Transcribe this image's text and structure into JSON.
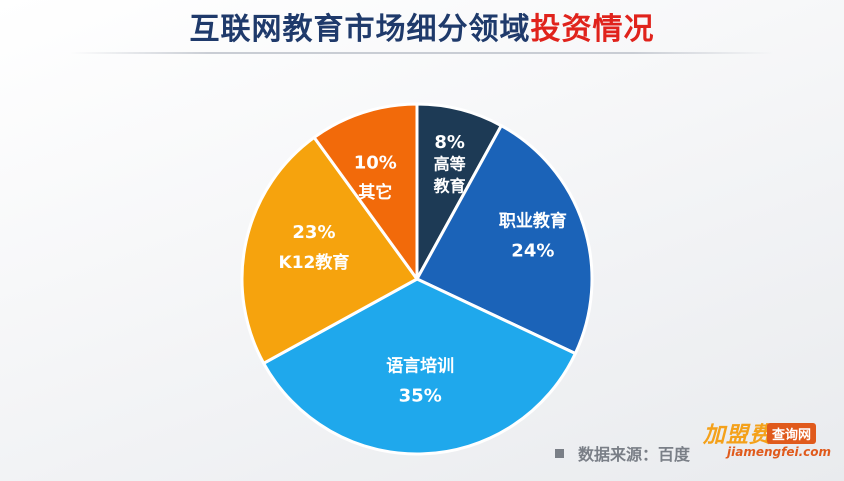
{
  "title": {
    "main": "互联网教育市场细分领域",
    "highlight": "投资情况"
  },
  "chart_data": {
    "type": "pie",
    "title": "互联网教育市场细分领域投资情况",
    "slices": [
      {
        "label_lines": [
          "高等",
          "教育"
        ],
        "value": 8,
        "value_text": "8%",
        "color": "#1d3a55"
      },
      {
        "label_lines": [
          "职业教育"
        ],
        "value": 24,
        "value_text": "24%",
        "color": "#1b63b8"
      },
      {
        "label_lines": [
          "语言培训"
        ],
        "value": 35,
        "value_text": "35%",
        "color": "#1fa8ec"
      },
      {
        "label_lines": [
          "K12教育"
        ],
        "value": 23,
        "value_text": "23%",
        "color": "#f6a30d"
      },
      {
        "label_lines": [
          "其它"
        ],
        "value": 10,
        "value_text": "10%",
        "color": "#f26a0a"
      }
    ],
    "start": "12 o'clock",
    "direction": "clockwise",
    "legend": "none"
  },
  "source": {
    "text": "数据来源：百度"
  },
  "watermark": {
    "brand": "加盟费",
    "box": "查询网",
    "url": "jiamengfei.com"
  }
}
